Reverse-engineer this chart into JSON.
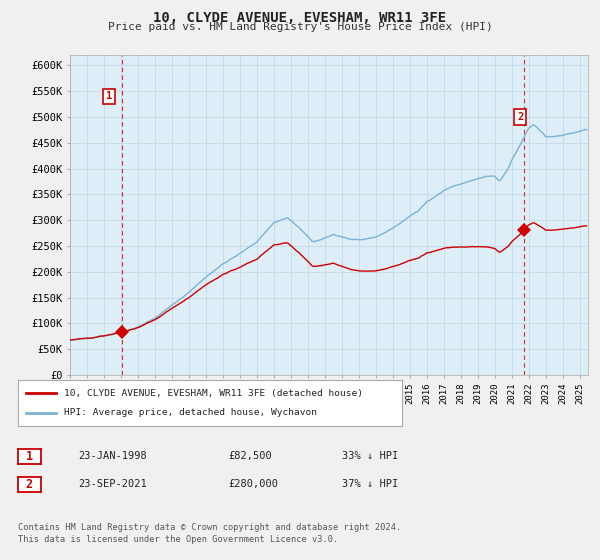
{
  "title": "10, CLYDE AVENUE, EVESHAM, WR11 3FE",
  "subtitle": "Price paid vs. HM Land Registry's House Price Index (HPI)",
  "ylabel_ticks": [
    "£0",
    "£50K",
    "£100K",
    "£150K",
    "£200K",
    "£250K",
    "£300K",
    "£350K",
    "£400K",
    "£450K",
    "£500K",
    "£550K",
    "£600K"
  ],
  "ytick_values": [
    0,
    50000,
    100000,
    150000,
    200000,
    250000,
    300000,
    350000,
    400000,
    450000,
    500000,
    550000,
    600000
  ],
  "ylim": [
    0,
    620000
  ],
  "xlim_start": 1995.0,
  "xlim_end": 2025.5,
  "sale1_year": 1998.07,
  "sale1_price": 82500,
  "sale1_label": "1",
  "sale1_date": "23-JAN-1998",
  "sale1_pct": "33% ↓ HPI",
  "sale2_year": 2021.73,
  "sale2_price": 280000,
  "sale2_label": "2",
  "sale2_date": "23-SEP-2021",
  "sale2_pct": "37% ↓ HPI",
  "hpi_color": "#7ab3d4",
  "sale_color": "#cc0000",
  "vline_color": "#cc0000",
  "plot_bg_color": "#deeef7",
  "legend_label1": "10, CLYDE AVENUE, EVESHAM, WR11 3FE (detached house)",
  "legend_label2": "HPI: Average price, detached house, Wychavon",
  "footer1": "Contains HM Land Registry data © Crown copyright and database right 2024.",
  "footer2": "This data is licensed under the Open Government Licence v3.0.",
  "background_color": "#f0f0f0",
  "hpi_anchors_x": [
    1995.0,
    1996.0,
    1997.0,
    1998.0,
    1999.0,
    2000.0,
    2001.0,
    2002.0,
    2003.0,
    2004.0,
    2005.0,
    2006.0,
    2007.0,
    2007.8,
    2008.5,
    2009.3,
    2009.8,
    2010.5,
    2011.0,
    2011.5,
    2012.0,
    2012.5,
    2013.0,
    2013.5,
    2014.0,
    2014.5,
    2015.0,
    2015.5,
    2016.0,
    2016.5,
    2017.0,
    2017.5,
    2018.0,
    2018.5,
    2019.0,
    2019.5,
    2020.0,
    2020.3,
    2020.8,
    2021.0,
    2021.5,
    2022.0,
    2022.3,
    2022.8,
    2023.0,
    2023.5,
    2024.0,
    2024.5,
    2025.0,
    2025.3
  ],
  "hpi_anchors_y": [
    67000,
    71000,
    76000,
    82000,
    93000,
    110000,
    135000,
    160000,
    190000,
    215000,
    235000,
    258000,
    295000,
    305000,
    285000,
    258000,
    262000,
    272000,
    268000,
    263000,
    262000,
    263000,
    267000,
    275000,
    285000,
    295000,
    308000,
    318000,
    335000,
    345000,
    358000,
    365000,
    370000,
    375000,
    380000,
    385000,
    385000,
    375000,
    400000,
    415000,
    445000,
    478000,
    485000,
    470000,
    462000,
    462000,
    465000,
    468000,
    472000,
    475000
  ]
}
